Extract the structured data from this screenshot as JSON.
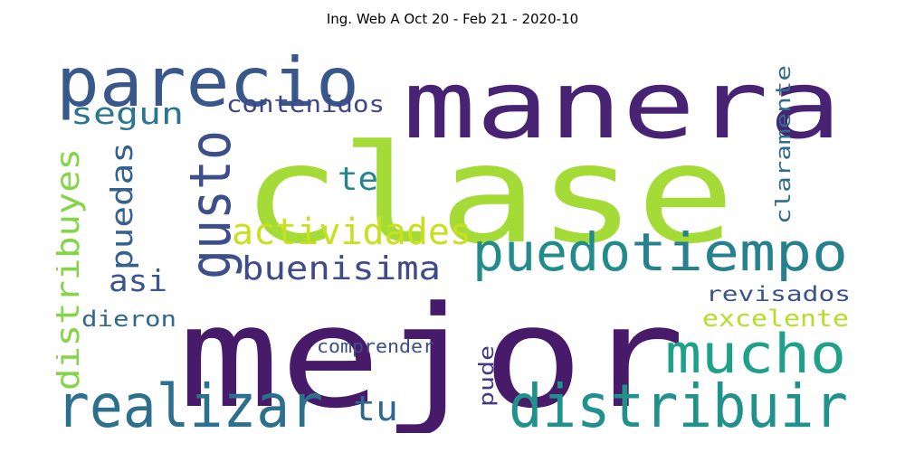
{
  "title": "Ing. Web A Oct 20 - Feb 21 - 2020-10",
  "words": [
    {
      "text": "clase",
      "color": "#a5db36"
    },
    {
      "text": "manera",
      "color": "#482374"
    },
    {
      "text": "mejor",
      "color": "#471a6a"
    },
    {
      "text": "parecio",
      "color": "#38588c"
    },
    {
      "text": "puedo",
      "color": "#228c8d"
    },
    {
      "text": "tiempo",
      "color": "#26818e"
    },
    {
      "text": "distribuir",
      "color": "#21918c"
    },
    {
      "text": "realizar",
      "color": "#2d708e"
    },
    {
      "text": "mucho",
      "color": "#1fa088"
    },
    {
      "text": "gusto",
      "color": "#3c4f8a"
    },
    {
      "text": "actividades",
      "color": "#c8e020"
    },
    {
      "text": "buenisima",
      "color": "#3e4a89"
    },
    {
      "text": "distribuyes",
      "color": "#86d549"
    },
    {
      "text": "puedas",
      "color": "#34618d"
    },
    {
      "text": "segun",
      "color": "#2a768e"
    },
    {
      "text": "te",
      "color": "#25858e"
    },
    {
      "text": "contenidos",
      "color": "#3f4788"
    },
    {
      "text": "claramente",
      "color": "#2f6c8e"
    },
    {
      "text": "revisados",
      "color": "#3b528b"
    },
    {
      "text": "excelente",
      "color": "#b5de2b"
    },
    {
      "text": "asi",
      "color": "#3a548c"
    },
    {
      "text": "dieron",
      "color": "#31688e"
    },
    {
      "text": "comprender",
      "color": "#3d4e8a"
    },
    {
      "text": "tu",
      "color": "#30678d"
    },
    {
      "text": "pude",
      "color": "#443983"
    }
  ]
}
